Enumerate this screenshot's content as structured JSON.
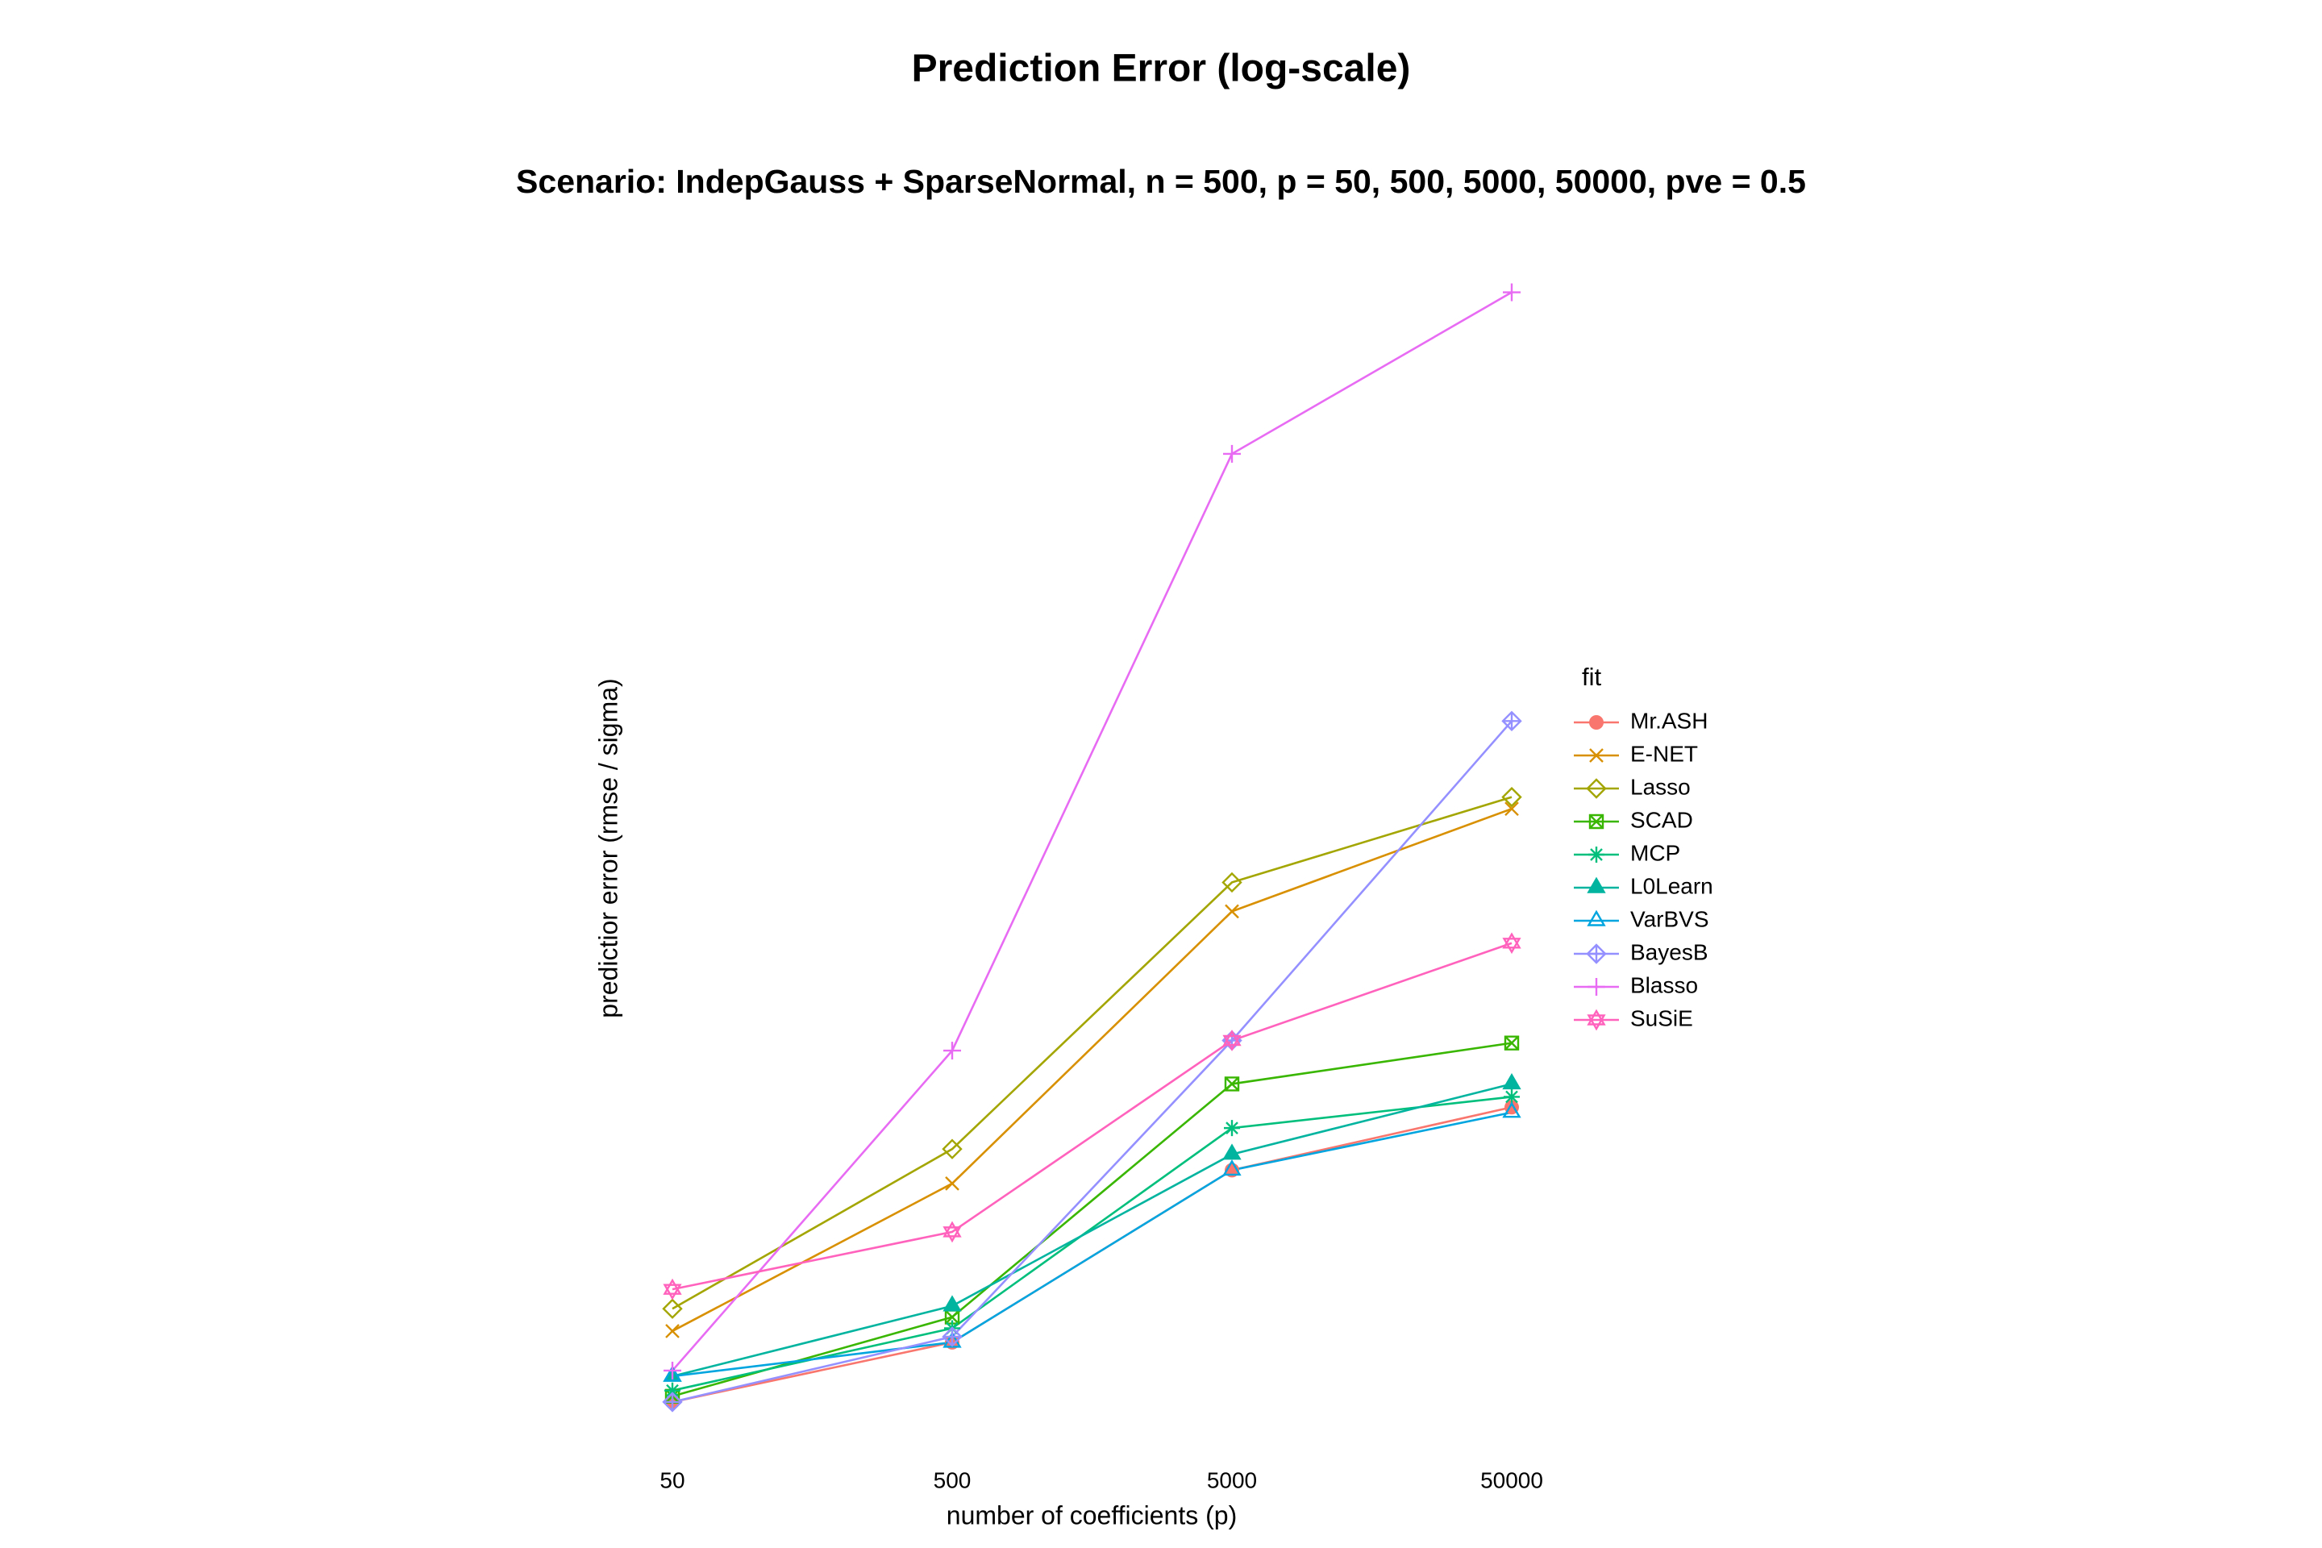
{
  "chart_data": {
    "type": "line",
    "title": "Prediction Error (log-scale)",
    "subtitle": "Scenario: IndepGauss + SparseNormal, n = 500, p = 50, 500, 5000, 50000, pve = 0.5",
    "x_label": "number of coefficients (p)",
    "y_label": "predictior error (rmse / sigma)",
    "legend_title": "fit",
    "legend_position": "right",
    "log_y": true,
    "ylim": [
      1.0,
      1.5
    ],
    "categories": [
      "50",
      "500",
      "5000",
      "50000"
    ],
    "series": [
      {
        "name": "Mr.ASH",
        "color": "#F8766D",
        "marker": "circle",
        "values": [
          1.017,
          1.038,
          1.101,
          1.125
        ]
      },
      {
        "name": "E-NET",
        "color": "#D89000",
        "marker": "x",
        "values": [
          1.042,
          1.096,
          1.203,
          1.246
        ]
      },
      {
        "name": "Lasso",
        "color": "#A3A500",
        "marker": "diamond",
        "values": [
          1.05,
          1.109,
          1.215,
          1.251
        ]
      },
      {
        "name": "SCAD",
        "color": "#39B600",
        "marker": "square-x",
        "values": [
          1.019,
          1.047,
          1.134,
          1.15
        ]
      },
      {
        "name": "MCP",
        "color": "#00BF7D",
        "marker": "asterisk",
        "values": [
          1.021,
          1.043,
          1.117,
          1.129
        ]
      },
      {
        "name": "L0Learn",
        "color": "#00B4A0",
        "marker": "triangle",
        "values": [
          1.026,
          1.051,
          1.107,
          1.134
        ]
      },
      {
        "name": "VarBVS",
        "color": "#00A5E0",
        "marker": "triangle-open",
        "values": [
          1.026,
          1.038,
          1.101,
          1.123
        ]
      },
      {
        "name": "BayesB",
        "color": "#9590FF",
        "marker": "diamond-plus",
        "values": [
          1.017,
          1.04,
          1.151,
          1.284
        ]
      },
      {
        "name": "Blasso",
        "color": "#E76BF3",
        "marker": "plus",
        "values": [
          1.028,
          1.147,
          1.407,
          1.487
        ]
      },
      {
        "name": "SuSiE",
        "color": "#FF62BC",
        "marker": "star",
        "values": [
          1.057,
          1.078,
          1.151,
          1.19
        ]
      }
    ]
  }
}
